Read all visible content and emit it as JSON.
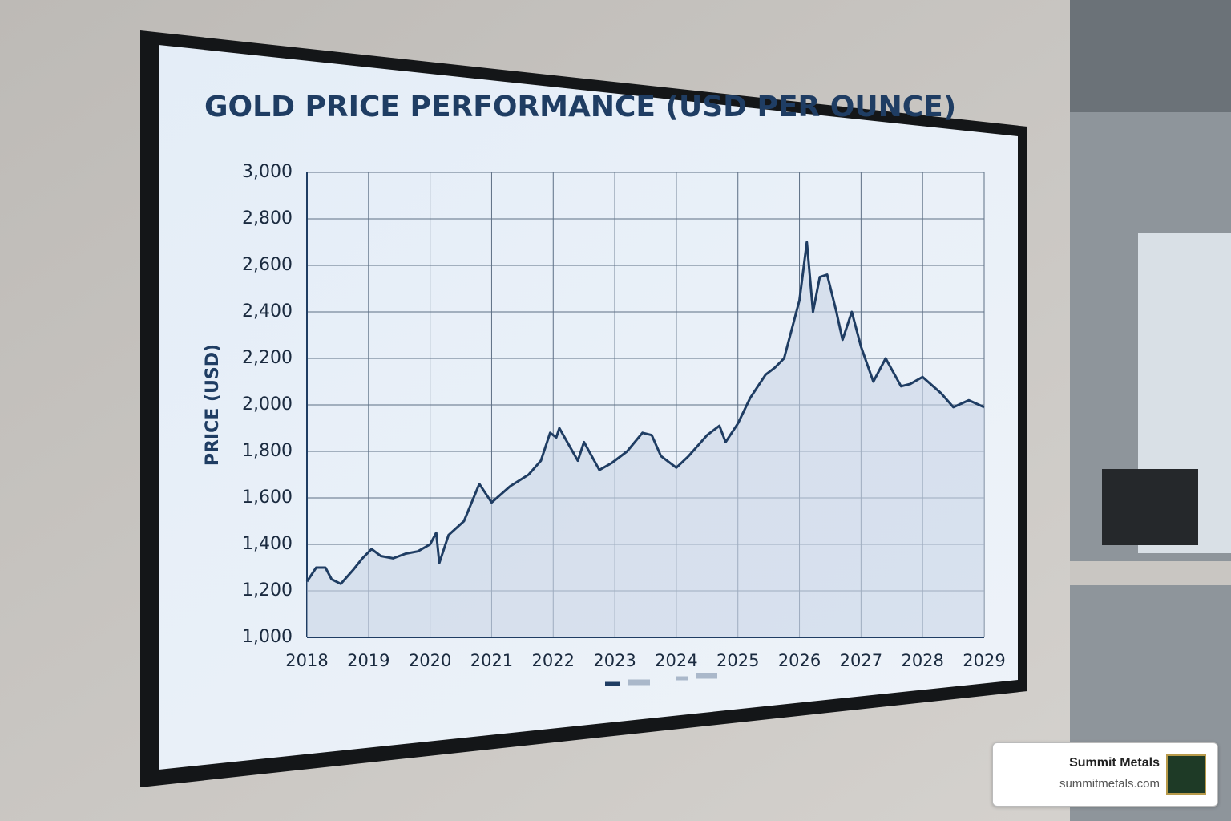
{
  "chart_data": {
    "type": "line",
    "title": "GOLD PRICE PERFORMANCE (USD PER OUNCE)",
    "y_label": "PRICE (USD)",
    "x": [
      2018.0,
      2018.15,
      2018.3,
      2018.4,
      2018.55,
      2018.75,
      2018.9,
      2019.05,
      2019.2,
      2019.4,
      2019.6,
      2019.8,
      2020.0,
      2020.1,
      2020.15,
      2020.3,
      2020.55,
      2020.8,
      2021.0,
      2021.3,
      2021.6,
      2021.8,
      2021.95,
      2022.05,
      2022.1,
      2022.4,
      2022.5,
      2022.75,
      2022.95,
      2023.2,
      2023.45,
      2023.6,
      2023.75,
      2024.0,
      2024.2,
      2024.5,
      2024.7,
      2024.8,
      2025.0,
      2025.2,
      2025.45,
      2025.6,
      2025.75,
      2026.0,
      2026.12,
      2026.22,
      2026.33,
      2026.45,
      2026.6,
      2026.7,
      2026.85,
      2027.0,
      2027.2,
      2027.4,
      2027.65,
      2027.8,
      2028.0,
      2028.3,
      2028.5,
      2028.75,
      2029.0
    ],
    "values": [
      1240,
      1300,
      1300,
      1250,
      1230,
      1290,
      1340,
      1380,
      1350,
      1340,
      1360,
      1370,
      1400,
      1450,
      1320,
      1440,
      1500,
      1660,
      1580,
      1650,
      1700,
      1760,
      1880,
      1860,
      1900,
      1760,
      1840,
      1720,
      1750,
      1800,
      1880,
      1870,
      1780,
      1730,
      1780,
      1870,
      1910,
      1840,
      1920,
      2030,
      2130,
      2160,
      2200,
      2450,
      2700,
      2400,
      2550,
      2560,
      2400,
      2280,
      2400,
      2250,
      2100,
      2200,
      2080,
      2090,
      2120,
      2050,
      1990,
      2020,
      1990
    ],
    "color": "#1f3d63",
    "fill_area": true,
    "fill_color": "#c9d6e6",
    "xlim": [
      2018,
      2029
    ],
    "xticks": [
      2018,
      2019,
      2020,
      2021,
      2022,
      2023,
      2024,
      2025,
      2026,
      2027,
      2028,
      2029
    ],
    "ylim": [
      1000,
      3000
    ],
    "yticks": [
      {
        "value": 1000,
        "label": "1,000"
      },
      {
        "value": 1200,
        "label": "1,200"
      },
      {
        "value": 1400,
        "label": "1,400"
      },
      {
        "value": 1600,
        "label": "1,600"
      },
      {
        "value": 1800,
        "label": "1,800"
      },
      {
        "value": 2000,
        "label": "2,000"
      },
      {
        "value": 2200,
        "label": "2,200"
      },
      {
        "value": 2400,
        "label": "2,400"
      },
      {
        "value": 2600,
        "label": "2,600"
      },
      {
        "value": 2800,
        "label": "2,800"
      },
      {
        "value": 3000,
        "label": "3,000"
      }
    ],
    "grid": true
  },
  "badge": {
    "name": "Summit Metals",
    "url": "summitmetals.com"
  }
}
